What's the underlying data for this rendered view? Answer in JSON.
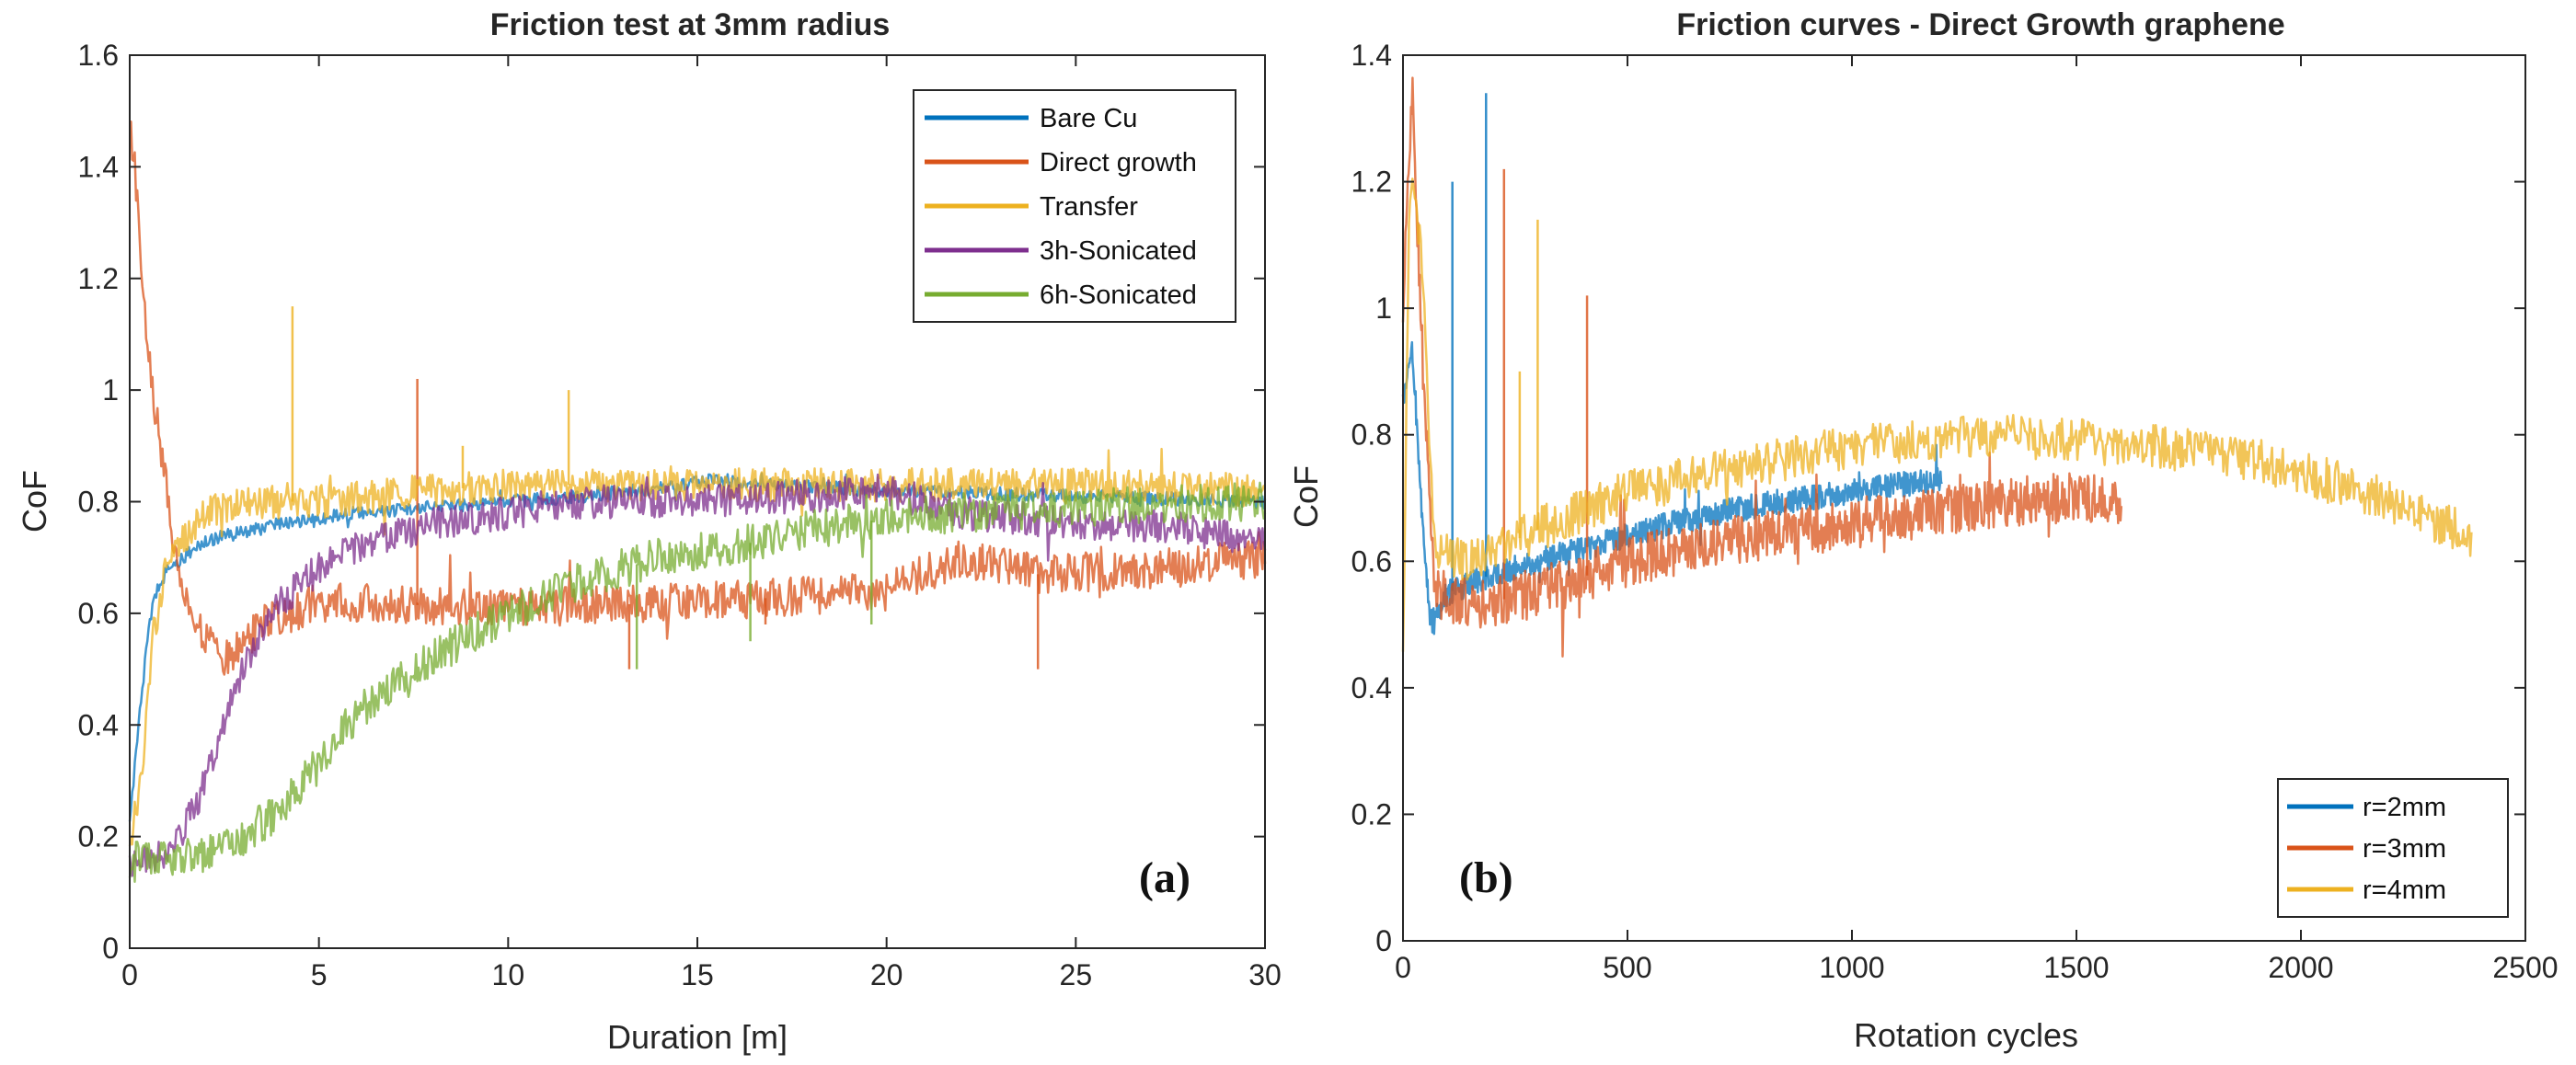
{
  "chart_data": [
    {
      "type": "line",
      "title": "Friction test at 3mm radius",
      "xlabel": "Duration [m]",
      "ylabel": "CoF",
      "xlim": [
        0,
        30
      ],
      "ylim": [
        0,
        1.6
      ],
      "xticks": [
        0,
        5,
        10,
        15,
        20,
        25,
        30
      ],
      "yticks": [
        0,
        0.2,
        0.4,
        0.6,
        0.8,
        1,
        1.2,
        1.4,
        1.6
      ],
      "xticklabels": [
        "0",
        "5",
        "10",
        "15",
        "20",
        "25",
        "30"
      ],
      "yticklabels": [
        "0",
        "0.2",
        "0.4",
        "0.6",
        "0.8",
        "1",
        "1.2",
        "1.4",
        "1.6"
      ],
      "panel_label": "(a)",
      "legend": "top-right",
      "series": [
        {
          "name": "Bare Cu",
          "color": "#0072BD",
          "noise": 0.012,
          "spikes": [],
          "points": [
            [
              0,
              0.22
            ],
            [
              0.3,
              0.45
            ],
            [
              0.6,
              0.62
            ],
            [
              1,
              0.68
            ],
            [
              2,
              0.73
            ],
            [
              4,
              0.76
            ],
            [
              6,
              0.78
            ],
            [
              8,
              0.79
            ],
            [
              10,
              0.8
            ],
            [
              12,
              0.81
            ],
            [
              14,
              0.825
            ],
            [
              15.5,
              0.84
            ],
            [
              17,
              0.83
            ],
            [
              20,
              0.82
            ],
            [
              25,
              0.81
            ],
            [
              30,
              0.8
            ]
          ]
        },
        {
          "name": "Direct growth",
          "color": "#D95319",
          "noise": 0.035,
          "spikes": [
            [
              7.6,
              1.02
            ],
            [
              13.2,
              0.5
            ],
            [
              16.8,
              0.58
            ],
            [
              24,
              0.5
            ]
          ],
          "points": [
            [
              0,
              1.5
            ],
            [
              0.25,
              1.3
            ],
            [
              0.5,
              1.05
            ],
            [
              0.8,
              0.9
            ],
            [
              1.2,
              0.72
            ],
            [
              1.6,
              0.6
            ],
            [
              2,
              0.55
            ],
            [
              2.5,
              0.52
            ],
            [
              3,
              0.55
            ],
            [
              3.5,
              0.58
            ],
            [
              5,
              0.62
            ],
            [
              10,
              0.61
            ],
            [
              15,
              0.62
            ],
            [
              20,
              0.64
            ],
            [
              22,
              0.7
            ],
            [
              24,
              0.67
            ],
            [
              27,
              0.68
            ],
            [
              30,
              0.7
            ]
          ]
        },
        {
          "name": "Transfer",
          "color": "#EDB120",
          "noise": 0.03,
          "spikes": [
            [
              4.3,
              1.15
            ],
            [
              11.6,
              1.0
            ],
            [
              8.8,
              0.9
            ]
          ],
          "points": [
            [
              0,
              0.18
            ],
            [
              0.3,
              0.3
            ],
            [
              0.6,
              0.55
            ],
            [
              1,
              0.7
            ],
            [
              2,
              0.78
            ],
            [
              3,
              0.8
            ],
            [
              5,
              0.8
            ],
            [
              8,
              0.82
            ],
            [
              10,
              0.83
            ],
            [
              15,
              0.83
            ],
            [
              20,
              0.83
            ],
            [
              25,
              0.83
            ],
            [
              30,
              0.82
            ]
          ]
        },
        {
          "name": "3h-Sonicated",
          "color": "#7E2F8E",
          "noise": 0.03,
          "spikes": [],
          "points": [
            [
              0,
              0.14
            ],
            [
              1,
              0.17
            ],
            [
              1.5,
              0.22
            ],
            [
              2,
              0.3
            ],
            [
              2.5,
              0.4
            ],
            [
              3,
              0.5
            ],
            [
              3.5,
              0.57
            ],
            [
              4,
              0.62
            ],
            [
              5,
              0.68
            ],
            [
              6,
              0.72
            ],
            [
              8,
              0.76
            ],
            [
              10,
              0.78
            ],
            [
              12,
              0.8
            ],
            [
              15,
              0.8
            ],
            [
              18,
              0.81
            ],
            [
              20,
              0.82
            ],
            [
              22,
              0.78
            ],
            [
              25,
              0.76
            ],
            [
              28,
              0.75
            ],
            [
              30,
              0.73
            ]
          ]
        },
        {
          "name": "6h-Sonicated",
          "color": "#77AC30",
          "noise": 0.035,
          "spikes": [
            [
              16.4,
              0.55
            ],
            [
              13.4,
              0.5
            ],
            [
              19.6,
              0.58
            ]
          ],
          "points": [
            [
              0,
              0.14
            ],
            [
              0.3,
              0.17
            ],
            [
              1,
              0.16
            ],
            [
              2,
              0.17
            ],
            [
              3,
              0.2
            ],
            [
              4,
              0.25
            ],
            [
              5,
              0.33
            ],
            [
              6,
              0.42
            ],
            [
              7,
              0.48
            ],
            [
              8,
              0.52
            ],
            [
              10,
              0.6
            ],
            [
              12,
              0.66
            ],
            [
              14,
              0.7
            ],
            [
              16,
              0.72
            ],
            [
              18,
              0.75
            ],
            [
              20,
              0.77
            ],
            [
              22,
              0.78
            ],
            [
              25,
              0.79
            ],
            [
              30,
              0.8
            ]
          ]
        }
      ]
    },
    {
      "type": "line",
      "title": "Friction curves - Direct Growth graphene",
      "xlabel": "Rotation cycles",
      "ylabel": "CoF",
      "xlim": [
        0,
        2500
      ],
      "ylim": [
        0,
        1.4
      ],
      "xticks": [
        0,
        500,
        1000,
        1500,
        2000,
        2500
      ],
      "yticks": [
        0,
        0.2,
        0.4,
        0.6,
        0.8,
        1,
        1.2,
        1.4
      ],
      "xticklabels": [
        "0",
        "500",
        "1000",
        "1500",
        "2000",
        "2500"
      ],
      "yticklabels": [
        "0",
        "0.2",
        "0.4",
        "0.6",
        "0.8",
        "1",
        "1.2",
        "1.4"
      ],
      "panel_label": "(b)",
      "legend": "bottom-right",
      "series": [
        {
          "name": "r=2mm",
          "color": "#0072BD",
          "noise": 0.02,
          "spikes": [
            [
              110,
              1.2
            ],
            [
              185,
              1.34
            ]
          ],
          "points": [
            [
              0,
              0.85
            ],
            [
              20,
              0.95
            ],
            [
              40,
              0.7
            ],
            [
              60,
              0.5
            ],
            [
              100,
              0.55
            ],
            [
              200,
              0.58
            ],
            [
              400,
              0.62
            ],
            [
              600,
              0.66
            ],
            [
              800,
              0.69
            ],
            [
              1000,
              0.71
            ],
            [
              1200,
              0.73
            ]
          ]
        },
        {
          "name": "r=3mm",
          "color": "#D95319",
          "noise": 0.04,
          "spikes": [
            [
              225,
              1.22
            ],
            [
              410,
              1.02
            ]
          ],
          "points": [
            [
              0,
              1.0
            ],
            [
              20,
              1.35
            ],
            [
              45,
              0.9
            ],
            [
              70,
              0.55
            ],
            [
              150,
              0.53
            ],
            [
              300,
              0.55
            ],
            [
              500,
              0.6
            ],
            [
              700,
              0.63
            ],
            [
              900,
              0.65
            ],
            [
              1100,
              0.67
            ],
            [
              1300,
              0.69
            ],
            [
              1450,
              0.7
            ],
            [
              1600,
              0.7
            ]
          ]
        },
        {
          "name": "r=4mm",
          "color": "#EDB120",
          "noise": 0.035,
          "spikes": [
            [
              300,
              1.14
            ],
            [
              260,
              0.9
            ]
          ],
          "points": [
            [
              0,
              0.45
            ],
            [
              15,
              1.2
            ],
            [
              40,
              1.1
            ],
            [
              70,
              0.62
            ],
            [
              150,
              0.6
            ],
            [
              300,
              0.65
            ],
            [
              500,
              0.71
            ],
            [
              700,
              0.74
            ],
            [
              900,
              0.77
            ],
            [
              1100,
              0.79
            ],
            [
              1300,
              0.8
            ],
            [
              1500,
              0.79
            ],
            [
              1700,
              0.78
            ],
            [
              1900,
              0.76
            ],
            [
              2100,
              0.72
            ],
            [
              2250,
              0.68
            ],
            [
              2380,
              0.64
            ]
          ]
        }
      ]
    }
  ]
}
